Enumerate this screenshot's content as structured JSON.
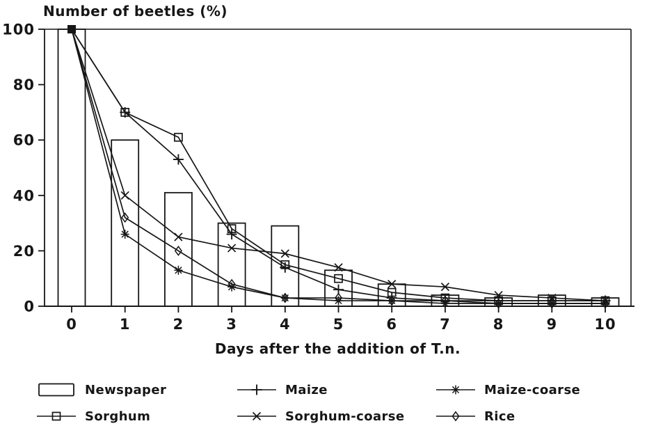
{
  "chart_data": {
    "type": "combo-bar-line",
    "title": "Number of beetles (%)",
    "xlabel": "Days after the addition of T.n.",
    "ylabel": "Number of beetles (%)",
    "x": [
      0,
      1,
      2,
      3,
      4,
      5,
      6,
      7,
      8,
      9,
      10
    ],
    "y_ticks": [
      0,
      20,
      40,
      60,
      80,
      100
    ],
    "ylim": [
      0,
      100
    ],
    "grid": false,
    "legend_position": "bottom",
    "bar_series": {
      "name": "Newspaper",
      "values": [
        100,
        60,
        41,
        30,
        29,
        13,
        8,
        4,
        3,
        4,
        3
      ]
    },
    "series": [
      {
        "name": "Sorghum",
        "marker": "square",
        "values": [
          100,
          70,
          61,
          28,
          15,
          10,
          5,
          3,
          2,
          2,
          2
        ]
      },
      {
        "name": "Maize",
        "marker": "plus",
        "values": [
          100,
          70,
          53,
          26,
          14,
          6,
          3,
          2,
          2,
          2,
          2
        ]
      },
      {
        "name": "Sorghum-coarse",
        "marker": "x",
        "values": [
          100,
          40,
          25,
          21,
          19,
          14,
          8,
          7,
          4,
          3,
          2
        ]
      },
      {
        "name": "Maize-coarse",
        "marker": "asterisk",
        "values": [
          100,
          26,
          13,
          7,
          3,
          2,
          2,
          1,
          1,
          1,
          1
        ]
      },
      {
        "name": "Rice",
        "marker": "diamond",
        "values": [
          100,
          32,
          20,
          8,
          3,
          3,
          2,
          2,
          1,
          1,
          1
        ]
      }
    ],
    "colors": {
      "ink": "#161616",
      "background": "#ffffff"
    }
  },
  "legend": {
    "columns": [
      {
        "items": [
          {
            "label": "Newspaper",
            "marker": "bar"
          },
          {
            "label": "Sorghum",
            "marker": "square"
          }
        ]
      },
      {
        "items": [
          {
            "label": "Maize",
            "marker": "plus"
          },
          {
            "label": "Sorghum-coarse",
            "marker": "x"
          }
        ]
      },
      {
        "items": [
          {
            "label": "Maize-coarse",
            "marker": "asterisk"
          },
          {
            "label": "Rice",
            "marker": "diamond"
          }
        ]
      }
    ]
  }
}
